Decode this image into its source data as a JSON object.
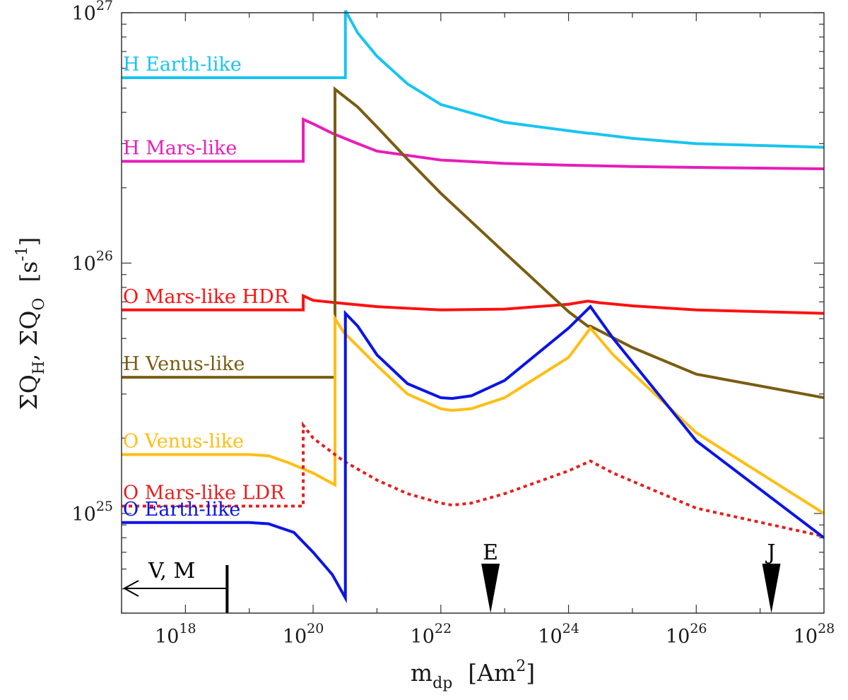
{
  "chart_data": {
    "type": "line",
    "xscale": "log",
    "yscale": "log",
    "xlim": [
      1e+17,
      1e+28
    ],
    "ylim": [
      4e+24,
      1e+27
    ],
    "xlabel": {
      "main": "m",
      "sub": "dp",
      "unit": "[Am",
      "unit_sup": "2",
      "unit_end": "]"
    },
    "ylabel": {
      "part1": "ΣQ",
      "sub1": "H",
      "comma": ", ΣQ",
      "sub2": "O",
      "unit": "[s",
      "unit_sup": "-1",
      "unit_end": "]"
    },
    "xticks": [
      {
        "base": "10",
        "exp": "18",
        "value": 1e+18
      },
      {
        "base": "10",
        "exp": "20",
        "value": 1e+20
      },
      {
        "base": "10",
        "exp": "22",
        "value": 1e+22
      },
      {
        "base": "10",
        "exp": "24",
        "value": 1e+24
      },
      {
        "base": "10",
        "exp": "26",
        "value": 1e+26
      },
      {
        "base": "10",
        "exp": "28",
        "value": 1e+28
      }
    ],
    "yticks": [
      {
        "base": "10",
        "exp": "25",
        "value": 1e+25
      },
      {
        "base": "10",
        "exp": "26",
        "value": 1e+26
      },
      {
        "base": "10",
        "exp": "27",
        "value": 1e+27
      }
    ],
    "series": [
      {
        "name": "H Earth-like",
        "color": "#19c4f0",
        "dash": false,
        "x": [
          1e+17,
          3.2e+20,
          3.2e+20,
          5e+20,
          1e+21,
          3e+21,
          1e+22,
          1e+23,
          2e+24,
          2.2e+24,
          1e+25,
          1e+26,
          1e+28
        ],
        "y": [
          5.5e+26,
          5.5e+26,
          1.02e+27,
          8.3e+26,
          6.7e+26,
          5.2e+26,
          4.3e+26,
          3.65e+26,
          3.3e+26,
          3.3e+26,
          3.15e+26,
          3e+26,
          2.9e+26
        ]
      },
      {
        "name": "H Mars-like",
        "color": "#e61eb9",
        "dash": false,
        "x": [
          1e+17,
          7e+19,
          7e+19,
          1e+20,
          2e+20,
          5e+20,
          1e+21,
          1e+22,
          1e+23,
          1e+24,
          1e+25,
          1e+26,
          1e+28
        ],
        "y": [
          2.55e+26,
          2.55e+26,
          3.75e+26,
          3.6e+26,
          3.3e+26,
          3e+26,
          2.8e+26,
          2.58e+26,
          2.5e+26,
          2.46e+26,
          2.43e+26,
          2.41e+26,
          2.38e+26
        ]
      },
      {
        "name": "O Mars-like HDR",
        "color": "#ff1010",
        "dash": false,
        "x": [
          1e+17,
          7e+19,
          7e+19,
          1e+20,
          3e+20,
          1e+21,
          3e+21,
          1e+22,
          1e+23,
          1e+24,
          2e+24,
          3e+24,
          1e+25,
          1e+26,
          1e+28
        ],
        "y": [
          6.5e+25,
          6.5e+25,
          7.4e+25,
          7.1e+25,
          6.9e+25,
          6.7e+25,
          6.6e+25,
          6.5e+25,
          6.55e+25,
          6.85e+25,
          7.05e+25,
          6.95e+25,
          6.75e+25,
          6.5e+25,
          6.3e+25
        ]
      },
      {
        "name": "H Venus-like",
        "color": "#7a5c12",
        "dash": false,
        "x": [
          1e+17,
          2.2e+20,
          2.2e+20,
          5e+20,
          1e+21,
          3e+21,
          1e+22,
          1e+23,
          1e+24,
          2e+24,
          2.2e+24,
          1e+25,
          1e+26,
          1e+28
        ],
        "y": [
          3.5e+25,
          3.5e+25,
          4.95e+26,
          4.2e+26,
          3.5e+26,
          2.6e+26,
          1.9e+26,
          1.1e+26,
          6.4e+25,
          5.6e+25,
          5.6e+25,
          4.6e+25,
          3.6e+25,
          2.9e+25
        ]
      },
      {
        "name": "O Venus-like",
        "color": "#ffbe14",
        "dash": false,
        "x": [
          1e+17,
          1e+19,
          2e+19,
          4e+19,
          1e+20,
          2.2e+20,
          2.2e+20,
          3e+20,
          1e+21,
          3e+21,
          1e+22,
          1.5e+22,
          3e+22,
          1e+23,
          1e+24,
          2.2e+24,
          5e+24,
          1e+26,
          1e+28
        ],
        "y": [
          1.72e+25,
          1.72e+25,
          1.7e+25,
          1.6e+25,
          1.45e+25,
          1.3e+25,
          6e+25,
          5.3e+25,
          3.9e+25,
          3e+25,
          2.62e+25,
          2.58e+25,
          2.62e+25,
          2.9e+25,
          4.2e+25,
          5.5e+25,
          4.3e+25,
          2.1e+25,
          1e+25
        ]
      },
      {
        "name": "O Mars-like LDR",
        "color": "#e61e1e",
        "dash": true,
        "x": [
          1e+17,
          7e+19,
          7e+19,
          1e+20,
          3e+20,
          1e+21,
          3e+21,
          1e+22,
          1.5e+22,
          3e+22,
          1e+23,
          1e+24,
          2.2e+24,
          5e+24,
          1e+26,
          1e+28
        ],
        "y": [
          1.07e+25,
          1.07e+25,
          2.25e+25,
          2e+25,
          1.62e+25,
          1.36e+25,
          1.2e+25,
          1.1e+25,
          1.08e+25,
          1.1e+25,
          1.2e+25,
          1.48e+25,
          1.62e+25,
          1.45e+25,
          1.05e+25,
          8.1e+24
        ]
      },
      {
        "name": "O Earth-like",
        "color": "#0a14e6",
        "dash": false,
        "x": [
          1e+17,
          1e+19,
          2e+19,
          5e+19,
          1e+20,
          2e+20,
          3.2e+20,
          3.2e+20,
          5e+20,
          1e+21,
          3e+21,
          1e+22,
          1.5e+22,
          3e+22,
          1e+23,
          1e+24,
          2.2e+24,
          5e+24,
          1e+26,
          1e+28
        ],
        "y": [
          9.2e+24,
          9.2e+24,
          9.1e+24,
          8.4e+24,
          7e+24,
          5.7e+24,
          4.6e+24,
          6.3e+25,
          5.6e+25,
          4.3e+25,
          3.3e+25,
          2.9e+25,
          2.88e+25,
          2.95e+25,
          3.4e+25,
          5.5e+25,
          6.7e+25,
          5e+25,
          1.95e+25,
          8e+24
        ]
      }
    ],
    "markers": [
      {
        "label": "E",
        "x": 6e+22
      },
      {
        "label": "J",
        "x": 1.5e+27
      }
    ],
    "range_indicator": {
      "label": "V, M",
      "x_end": 4.5e+18
    }
  }
}
